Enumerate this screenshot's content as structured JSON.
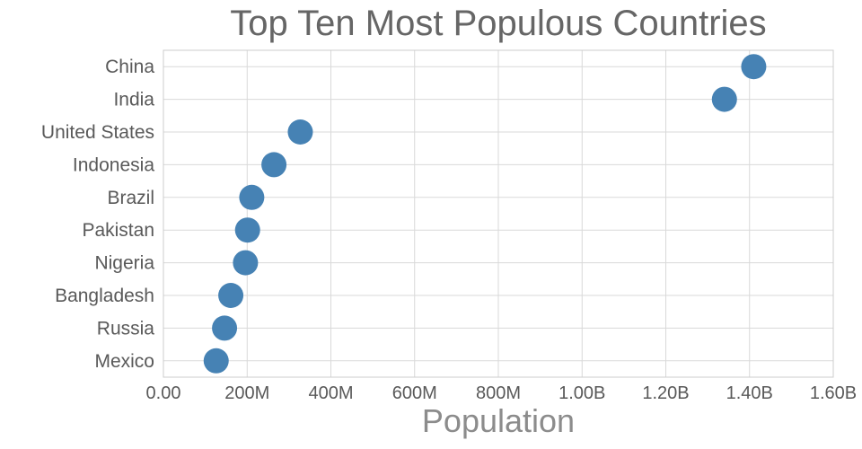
{
  "chart_data": {
    "type": "scatter",
    "title": "Top Ten Most Populous Countries",
    "xlabel": "Population",
    "ylabel": "",
    "categories": [
      "China",
      "India",
      "United States",
      "Indonesia",
      "Brazil",
      "Pakistan",
      "Nigeria",
      "Bangladesh",
      "Russia",
      "Mexico"
    ],
    "values": [
      1410000000,
      1340000000,
      327000000,
      264000000,
      211000000,
      201000000,
      196000000,
      161000000,
      146000000,
      126000000
    ],
    "xlim": [
      0,
      1600000000
    ],
    "xticks": {
      "values": [
        0,
        200000000,
        400000000,
        600000000,
        800000000,
        1000000000,
        1200000000,
        1400000000,
        1600000000
      ],
      "labels": [
        "0.00",
        "200M",
        "400M",
        "600M",
        "800M",
        "1.00B",
        "1.20B",
        "1.40B",
        "1.60B"
      ]
    },
    "grid": true,
    "legend": "none",
    "marker_radius": 14,
    "colors": {
      "dot": "#4682B4",
      "grid": "#d9d9d9",
      "frame": "#cccccc",
      "title": "#666666",
      "tick": "#595959",
      "axis_label": "#8c8c8c"
    }
  }
}
